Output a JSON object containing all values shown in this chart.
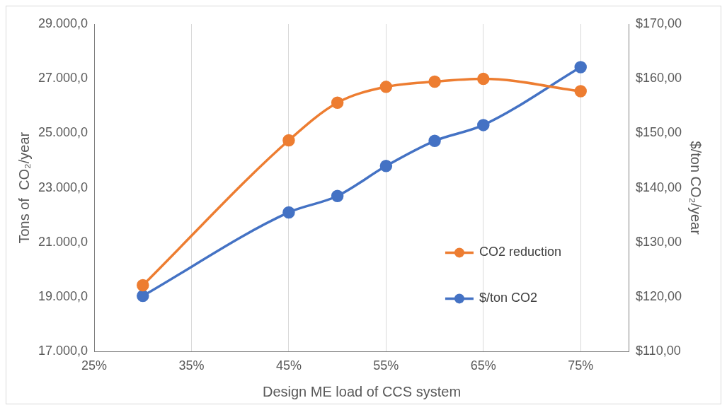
{
  "chart_data": {
    "type": "line",
    "xlabel": "Design ME load of CCS system",
    "ylabel": "Tons of  CO₂/year",
    "y2label": "$/ton CO₂/year",
    "x": [
      30,
      45,
      50,
      55,
      60,
      65,
      75
    ],
    "series": [
      {
        "name": "CO2 reduction",
        "color": "#ed7d31",
        "values": [
          19430,
          24740,
          26120,
          26700,
          26890,
          26990,
          26540
        ]
      },
      {
        "name": "$/ton CO2",
        "color": "#4472c4",
        "axis": "y2",
        "values": [
          120.2,
          135.5,
          138.5,
          144.0,
          148.6,
          151.5,
          162.1
        ]
      }
    ],
    "xlim": [
      25,
      80
    ],
    "xticks": [
      {
        "value": 25,
        "label": "25%"
      },
      {
        "value": 35,
        "label": "35%"
      },
      {
        "value": 45,
        "label": "45%"
      },
      {
        "value": 55,
        "label": "55%"
      },
      {
        "value": 65,
        "label": "65%"
      },
      {
        "value": 75,
        "label": "75%"
      }
    ],
    "ylim": [
      17000,
      29000
    ],
    "yticks": [
      {
        "value": 17000,
        "label": "17.000,0"
      },
      {
        "value": 19000,
        "label": "19.000,0"
      },
      {
        "value": 21000,
        "label": "21.000,0"
      },
      {
        "value": 23000,
        "label": "23.000,0"
      },
      {
        "value": 25000,
        "label": "25.000,0"
      },
      {
        "value": 27000,
        "label": "27.000,0"
      },
      {
        "value": 29000,
        "label": "29.000,0"
      }
    ],
    "y2lim": [
      110,
      170
    ],
    "y2ticks": [
      {
        "value": 110,
        "label": "$110,00"
      },
      {
        "value": 120,
        "label": "$120,00"
      },
      {
        "value": 130,
        "label": "$130,00"
      },
      {
        "value": 140,
        "label": "$140,00"
      },
      {
        "value": 150,
        "label": "$150,00"
      },
      {
        "value": 160,
        "label": "$160,00"
      },
      {
        "value": 170,
        "label": "$170,00"
      }
    ],
    "grid": "x",
    "legend": "bottom right",
    "marker": "circle",
    "line_style": "solid"
  }
}
